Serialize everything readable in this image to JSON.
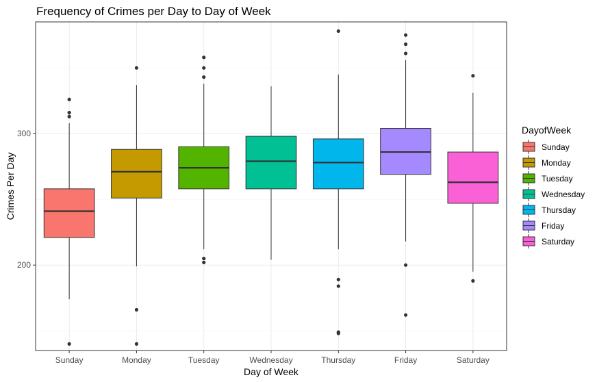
{
  "chart_data": {
    "type": "boxplot",
    "title": "Frequency of Crimes per Day to Day of Week",
    "xlabel": "Day of Week",
    "ylabel": "Crimes Per Day",
    "ylim": [
      135,
      385
    ],
    "yticks": [
      200,
      300
    ],
    "grid": true,
    "legend": {
      "title": "DayofWeek",
      "placement": "right"
    },
    "categories": [
      "Sunday",
      "Monday",
      "Tuesday",
      "Wednesday",
      "Thursday",
      "Friday",
      "Saturday"
    ],
    "colors": [
      "#F8766D",
      "#C49A00",
      "#53B400",
      "#00C094",
      "#00B6EB",
      "#A58AFF",
      "#FB61D7"
    ],
    "series": [
      {
        "name": "Sunday",
        "whisker_low": 174,
        "q1": 221,
        "median": 241,
        "q3": 258,
        "whisker_high": 308,
        "outliers": [
          140,
          313,
          316,
          326
        ]
      },
      {
        "name": "Monday",
        "whisker_low": 199,
        "q1": 251,
        "median": 271,
        "q3": 288,
        "whisker_high": 337,
        "outliers": [
          140,
          166,
          350
        ]
      },
      {
        "name": "Tuesday",
        "whisker_low": 212,
        "q1": 258,
        "median": 274,
        "q3": 290,
        "whisker_high": 338,
        "outliers": [
          202,
          205,
          343,
          350,
          358
        ]
      },
      {
        "name": "Wednesday",
        "whisker_low": 204,
        "q1": 258,
        "median": 279,
        "q3": 298,
        "whisker_high": 336,
        "outliers": []
      },
      {
        "name": "Thursday",
        "whisker_low": 212,
        "q1": 258,
        "median": 278,
        "q3": 296,
        "whisker_high": 345,
        "outliers": [
          148,
          149,
          184,
          189,
          378
        ]
      },
      {
        "name": "Friday",
        "whisker_low": 218,
        "q1": 269,
        "median": 286,
        "q3": 304,
        "whisker_high": 356,
        "outliers": [
          162,
          200,
          361,
          368,
          375
        ]
      },
      {
        "name": "Saturday",
        "whisker_low": 195,
        "q1": 247,
        "median": 263,
        "q3": 286,
        "whisker_high": 331,
        "outliers": [
          188,
          344
        ]
      }
    ]
  }
}
